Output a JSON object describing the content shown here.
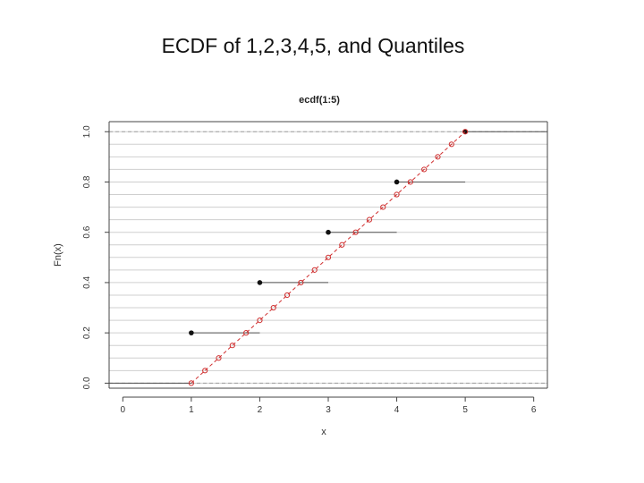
{
  "slide": {
    "title": "ECDF of 1,2,3,4,5, and Quantiles"
  },
  "chart_data": {
    "type": "line",
    "title": "ecdf(1:5)",
    "xlabel": "x",
    "ylabel": "Fn(x)",
    "xlim": [
      -0.2,
      6.2
    ],
    "ylim": [
      -0.02,
      1.04
    ],
    "x_ticks": [
      "0",
      "1",
      "2",
      "3",
      "4",
      "5",
      "6"
    ],
    "y_ticks": [
      "0.0",
      "0.2",
      "0.4",
      "0.6",
      "0.8",
      "1.0"
    ],
    "grid": true,
    "step_points": [
      {
        "x": 1,
        "y": 0.2
      },
      {
        "x": 2,
        "y": 0.4
      },
      {
        "x": 3,
        "y": 0.6
      },
      {
        "x": 4,
        "y": 0.8
      },
      {
        "x": 5,
        "y": 1.0
      }
    ],
    "quantile_points": [
      {
        "x": 1.0,
        "y": 0.0
      },
      {
        "x": 1.2,
        "y": 0.05
      },
      {
        "x": 1.4,
        "y": 0.1
      },
      {
        "x": 1.6,
        "y": 0.15
      },
      {
        "x": 1.8,
        "y": 0.2
      },
      {
        "x": 2.0,
        "y": 0.25
      },
      {
        "x": 2.2,
        "y": 0.3
      },
      {
        "x": 2.4,
        "y": 0.35
      },
      {
        "x": 2.6,
        "y": 0.4
      },
      {
        "x": 2.8,
        "y": 0.45
      },
      {
        "x": 3.0,
        "y": 0.5
      },
      {
        "x": 3.2,
        "y": 0.55
      },
      {
        "x": 3.4,
        "y": 0.6
      },
      {
        "x": 3.6,
        "y": 0.65
      },
      {
        "x": 3.8,
        "y": 0.7
      },
      {
        "x": 4.0,
        "y": 0.75
      },
      {
        "x": 4.2,
        "y": 0.8
      },
      {
        "x": 4.4,
        "y": 0.85
      },
      {
        "x": 4.6,
        "y": 0.9
      },
      {
        "x": 4.8,
        "y": 0.95
      },
      {
        "x": 5.0,
        "y": 1.0
      }
    ],
    "colors": {
      "step": "#111111",
      "quantile": "#d03030",
      "grid": "#cfcfcf",
      "reference": "#a0a0a0"
    }
  }
}
